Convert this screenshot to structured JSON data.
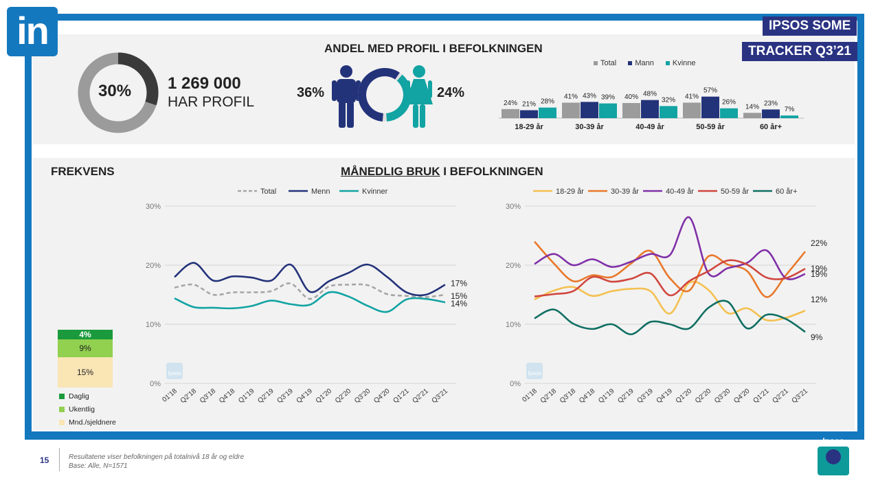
{
  "logo": {
    "text": "in"
  },
  "badges": {
    "line1": "IPSOS SOME",
    "line2": "TRACKER Q3’21"
  },
  "profile": {
    "percent": "30%",
    "percent_value": 30,
    "count": "1 269 000",
    "caption": "HAR PROFIL",
    "title": "ANDEL MED PROFIL I BEFOLKNINGEN",
    "men_pct": "36%",
    "women_pct": "24%",
    "men_value": 36,
    "women_value": 24
  },
  "colors": {
    "total": "#9b9b9b",
    "men": "#23337a",
    "women": "#12a3a3",
    "blue_frame": "#1478be",
    "badge": "#2a3382"
  },
  "age_chart": {
    "type": "bar",
    "legend": [
      "Total",
      "Mann",
      "Kvinne"
    ],
    "categories": [
      "18-29 år",
      "30-39 år",
      "40-49 år",
      "50-59 år",
      "60 år+"
    ],
    "series": [
      {
        "name": "Total",
        "values": [
          24,
          41,
          40,
          41,
          14
        ],
        "labels": [
          "24%",
          "41%",
          "40%",
          "41%",
          "14%"
        ]
      },
      {
        "name": "Mann",
        "values": [
          21,
          43,
          48,
          57,
          23
        ],
        "labels": [
          "21%",
          "43%",
          "48%",
          "57%",
          "23%"
        ]
      },
      {
        "name": "Kvinne",
        "values": [
          28,
          39,
          32,
          26,
          7
        ],
        "labels": [
          "28%",
          "39%",
          "32%",
          "26%",
          "7%"
        ]
      }
    ]
  },
  "frequency": {
    "title": "FREKVENS",
    "segments": [
      {
        "name": "Daglig",
        "value": 4,
        "label": "4%",
        "color": "#1a9a3c"
      },
      {
        "name": "Ukentlig",
        "value": 9,
        "label": "9%",
        "color": "#92d050"
      },
      {
        "name": "Mnd./sjeldnere",
        "value": 15,
        "label": "15%",
        "color": "#fae5b5"
      }
    ],
    "legend": [
      "Daglig",
      "Ukentlig",
      "Mnd./sjeldnere"
    ]
  },
  "monthly_title": {
    "underlined": "MÅNEDLIG BRUK",
    "rest": " I BEFOLKNINGEN"
  },
  "chart_data": [
    {
      "type": "line",
      "x": [
        "01'18",
        "Q2'18",
        "Q3'18",
        "Q4'18",
        "Q1'19",
        "Q2'19",
        "Q3'19",
        "Q4'19",
        "Q1'20",
        "Q2'20",
        "Q3'20",
        "Q4'20",
        "Q1'21",
        "Q2'21",
        "Q3'21"
      ],
      "yticks": [
        "0%",
        "10%",
        "20%",
        "30%"
      ],
      "ylim": [
        0,
        30
      ],
      "legend": [
        "Total",
        "Menn",
        "Kvinner"
      ],
      "series": [
        {
          "name": "Total",
          "color": "#a6a6a6",
          "dashed": true,
          "values": [
            16.2,
            16.7,
            15.0,
            15.4,
            15.4,
            15.6,
            16.9,
            14.3,
            16.4,
            16.7,
            16.6,
            15.1,
            14.8,
            14.6,
            15.0
          ],
          "end_label": "15%"
        },
        {
          "name": "Menn",
          "color": "#23337a",
          "values": [
            18.0,
            20.4,
            17.4,
            18.1,
            17.9,
            17.4,
            20.1,
            15.5,
            17.3,
            18.7,
            20.1,
            18.0,
            15.4,
            15.0,
            16.7
          ],
          "end_label": "17%"
        },
        {
          "name": "Kvinner",
          "color": "#12a3a3",
          "values": [
            14.4,
            12.9,
            12.8,
            12.7,
            13.1,
            14.0,
            13.4,
            13.3,
            15.4,
            14.7,
            13.1,
            12.1,
            14.2,
            14.3,
            13.7
          ],
          "end_label": "14%"
        }
      ],
      "watermark": "Ipsos"
    },
    {
      "type": "line",
      "x": [
        "01'18",
        "Q2'18",
        "Q3'18",
        "Q4'18",
        "Q1'19",
        "Q2'19",
        "Q3'19",
        "Q4'19",
        "Q1'20",
        "Q2'20",
        "Q3'20",
        "Q4'20",
        "Q1'21",
        "Q2'21",
        "Q3'21"
      ],
      "yticks": [
        "0%",
        "10%",
        "20%",
        "30%"
      ],
      "ylim": [
        0,
        30
      ],
      "legend": [
        "18-29 år",
        "30-39 år",
        "40-49 år",
        "50-59 år",
        "60 år+"
      ],
      "series": [
        {
          "name": "18-29 år",
          "color": "#f4c050",
          "values": [
            14.2,
            15.7,
            16.3,
            14.8,
            15.6,
            16.0,
            15.6,
            11.8,
            17.0,
            15.8,
            11.9,
            12.7,
            10.7,
            11.1,
            12.3
          ],
          "end_label": "12%"
        },
        {
          "name": "30-39 år",
          "color": "#e8782a",
          "values": [
            24.0,
            20.3,
            17.3,
            18.3,
            18.0,
            20.3,
            22.4,
            17.8,
            15.7,
            21.5,
            20.1,
            19.0,
            14.6,
            18.3,
            22.3
          ],
          "end_label": "22%"
        },
        {
          "name": "40-49 år",
          "color": "#8030a8",
          "values": [
            20.2,
            21.9,
            20.0,
            21.0,
            19.7,
            20.6,
            21.9,
            21.7,
            28.1,
            18.6,
            19.5,
            20.4,
            22.5,
            17.8,
            18.5
          ],
          "end_label": "19%"
        },
        {
          "name": "50-59 år",
          "color": "#d0463d",
          "values": [
            14.7,
            15.1,
            15.6,
            18.0,
            17.2,
            17.7,
            18.6,
            14.9,
            17.3,
            19.0,
            20.8,
            20.1,
            17.9,
            17.8,
            19.4
          ],
          "end_label": "19%"
        },
        {
          "name": "60 år+",
          "color": "#0f6e62",
          "values": [
            11.0,
            12.5,
            10.1,
            9.2,
            10.0,
            8.3,
            10.4,
            10.0,
            9.3,
            12.8,
            13.8,
            9.3,
            11.6,
            10.9,
            8.7
          ],
          "end_label": "9%"
        }
      ],
      "watermark": "Ipsos"
    }
  ],
  "footer": {
    "page": "15",
    "line1": "Resultatene viser befolkningen på totalnivå 18 år og eldre",
    "line2": "Base: Alle, N=1571",
    "logo": "Ipsos"
  }
}
